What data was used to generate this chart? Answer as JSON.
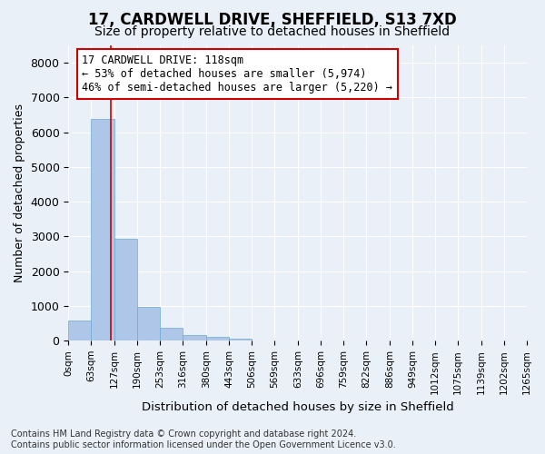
{
  "title_line1": "17, CARDWELL DRIVE, SHEFFIELD, S13 7XD",
  "title_line2": "Size of property relative to detached houses in Sheffield",
  "xlabel": "Distribution of detached houses by size in Sheffield",
  "ylabel": "Number of detached properties",
  "bar_color": "#aec6e8",
  "bar_edge_color": "#6aaad4",
  "bar_heights": [
    580,
    6390,
    2920,
    980,
    360,
    165,
    100,
    60,
    0,
    0,
    0,
    0,
    0,
    0,
    0,
    0,
    0,
    0,
    0,
    0
  ],
  "bin_edges": [
    0,
    63,
    127,
    190,
    253,
    316,
    380,
    443,
    506,
    569,
    633,
    696,
    759,
    822,
    886,
    949,
    1012,
    1075,
    1139,
    1202,
    1265
  ],
  "tick_labels": [
    "0sqm",
    "63sqm",
    "127sqm",
    "190sqm",
    "253sqm",
    "316sqm",
    "380sqm",
    "443sqm",
    "506sqm",
    "569sqm",
    "633sqm",
    "696sqm",
    "759sqm",
    "822sqm",
    "886sqm",
    "949sqm",
    "1012sqm",
    "1075sqm",
    "1139sqm",
    "1202sqm",
    "1265sqm"
  ],
  "ylim": [
    0,
    8500
  ],
  "yticks": [
    0,
    1000,
    2000,
    3000,
    4000,
    5000,
    6000,
    7000,
    8000
  ],
  "vline_x": 118,
  "vline_color": "#cc0000",
  "annotation_text": "17 CARDWELL DRIVE: 118sqm\n← 53% of detached houses are smaller (5,974)\n46% of semi-detached houses are larger (5,220) →",
  "annotation_box_color": "#cc0000",
  "bg_color": "#eaf0f8",
  "plot_bg_color": "#eaf0f8",
  "footer_text": "Contains HM Land Registry data © Crown copyright and database right 2024.\nContains public sector information licensed under the Open Government Licence v3.0.",
  "title_fontsize": 12,
  "subtitle_fontsize": 10,
  "xlabel_fontsize": 9.5,
  "ylabel_fontsize": 9,
  "tick_fontsize": 7.5,
  "annotation_fontsize": 8.5,
  "footer_fontsize": 7
}
